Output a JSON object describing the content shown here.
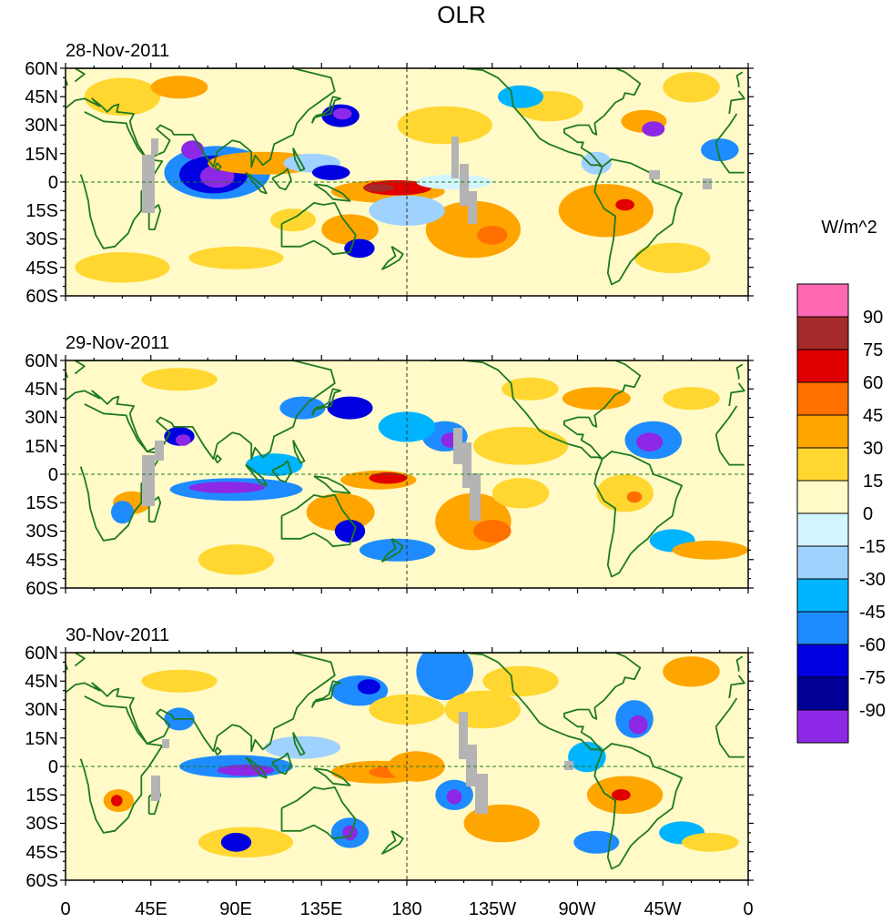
{
  "title": "OLR",
  "units": "W/m^2",
  "panels": [
    {
      "date": "28-Nov-2011"
    },
    {
      "date": "29-Nov-2011"
    },
    {
      "date": "30-Nov-2011"
    }
  ],
  "lat_labels": [
    "60N",
    "45N",
    "30N",
    "15N",
    "0",
    "15S",
    "30S",
    "45S",
    "60S"
  ],
  "lon_labels": [
    "0",
    "45E",
    "90E",
    "135E",
    "180",
    "135W",
    "90W",
    "45W",
    "0"
  ],
  "colorbar": {
    "labels": [
      "90",
      "75",
      "60",
      "45",
      "30",
      "15",
      "0",
      "-15",
      "-30",
      "-45",
      "-60",
      "-75",
      "-90"
    ],
    "colors": [
      "#ff69b4",
      "#a52a2a",
      "#e00000",
      "#ff7000",
      "#ffa500",
      "#ffd730",
      "#fffac8",
      "#d2f5ff",
      "#a0d2ff",
      "#00b4ff",
      "#1e8cff",
      "#0000e0",
      "#000096",
      "#8c28e6"
    ]
  }
}
